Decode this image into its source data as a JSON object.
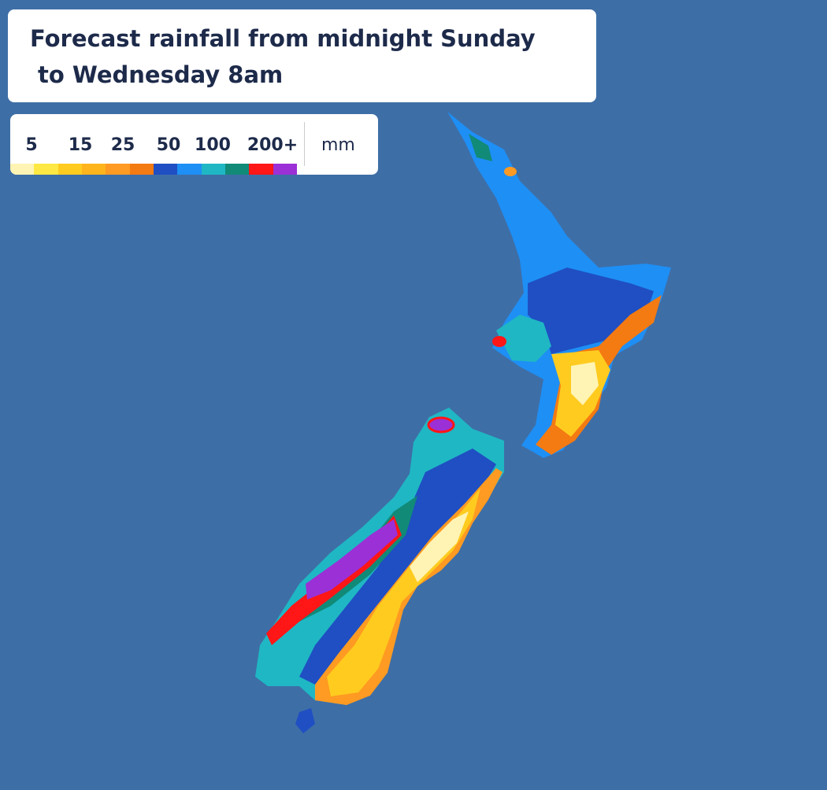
{
  "title": [
    "Forecast rainfall from midnight Sunday",
    "to Wednesday 8am"
  ],
  "legend": {
    "labels": [
      "5",
      "15",
      "25",
      "50",
      "100",
      "200+"
    ],
    "unit": "mm",
    "colors": [
      "#fff4b4",
      "#ffe843",
      "#ffcb1f",
      "#ffb41c",
      "#ff9a22",
      "#f47a12",
      "#1f4fc2",
      "#1e8ff5",
      "#1fb7c4",
      "#118a78",
      "#ff1616",
      "#9b30d6"
    ]
  }
}
